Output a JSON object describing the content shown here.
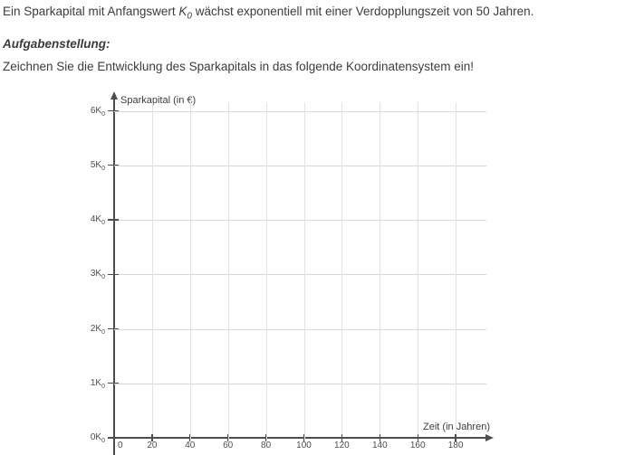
{
  "text": {
    "intro_pre": "Ein Sparkapital mit Anfangswert ",
    "intro_var": "K",
    "intro_var_sub": "0",
    "intro_post": " wächst exponentiell mit einer Verdopplungszeit von 50 Jahren.",
    "heading": "Aufgabenstellung:",
    "task": "Zeichnen Sie die Entwicklung des Sparkapitals in das folgende Koordinatensystem ein!"
  },
  "chart_data": {
    "type": "line",
    "title": "",
    "xlabel": "Zeit (in Jahren)",
    "ylabel": "Sparkapital (in €)",
    "x_ticks": [
      0,
      20,
      40,
      60,
      80,
      100,
      120,
      140,
      160,
      180
    ],
    "y_ticks": [
      {
        "text": "0K",
        "sub": "0"
      },
      {
        "text": "1K",
        "sub": "0"
      },
      {
        "text": "2K",
        "sub": "0"
      },
      {
        "text": "3K",
        "sub": "0"
      },
      {
        "text": "4K",
        "sub": "0"
      },
      {
        "text": "5K",
        "sub": "0"
      },
      {
        "text": "6K",
        "sub": "0"
      }
    ],
    "xlim": [
      0,
      200
    ],
    "ylim": [
      0,
      6
    ],
    "grid": true,
    "legend": false,
    "series": []
  },
  "colors": {
    "background": "#ffffff",
    "text": "#3c3c3c",
    "axis": "#4d4d4d",
    "grid_horizontal": "#d9d9d9",
    "grid_vertical": "#e2e2e2"
  }
}
